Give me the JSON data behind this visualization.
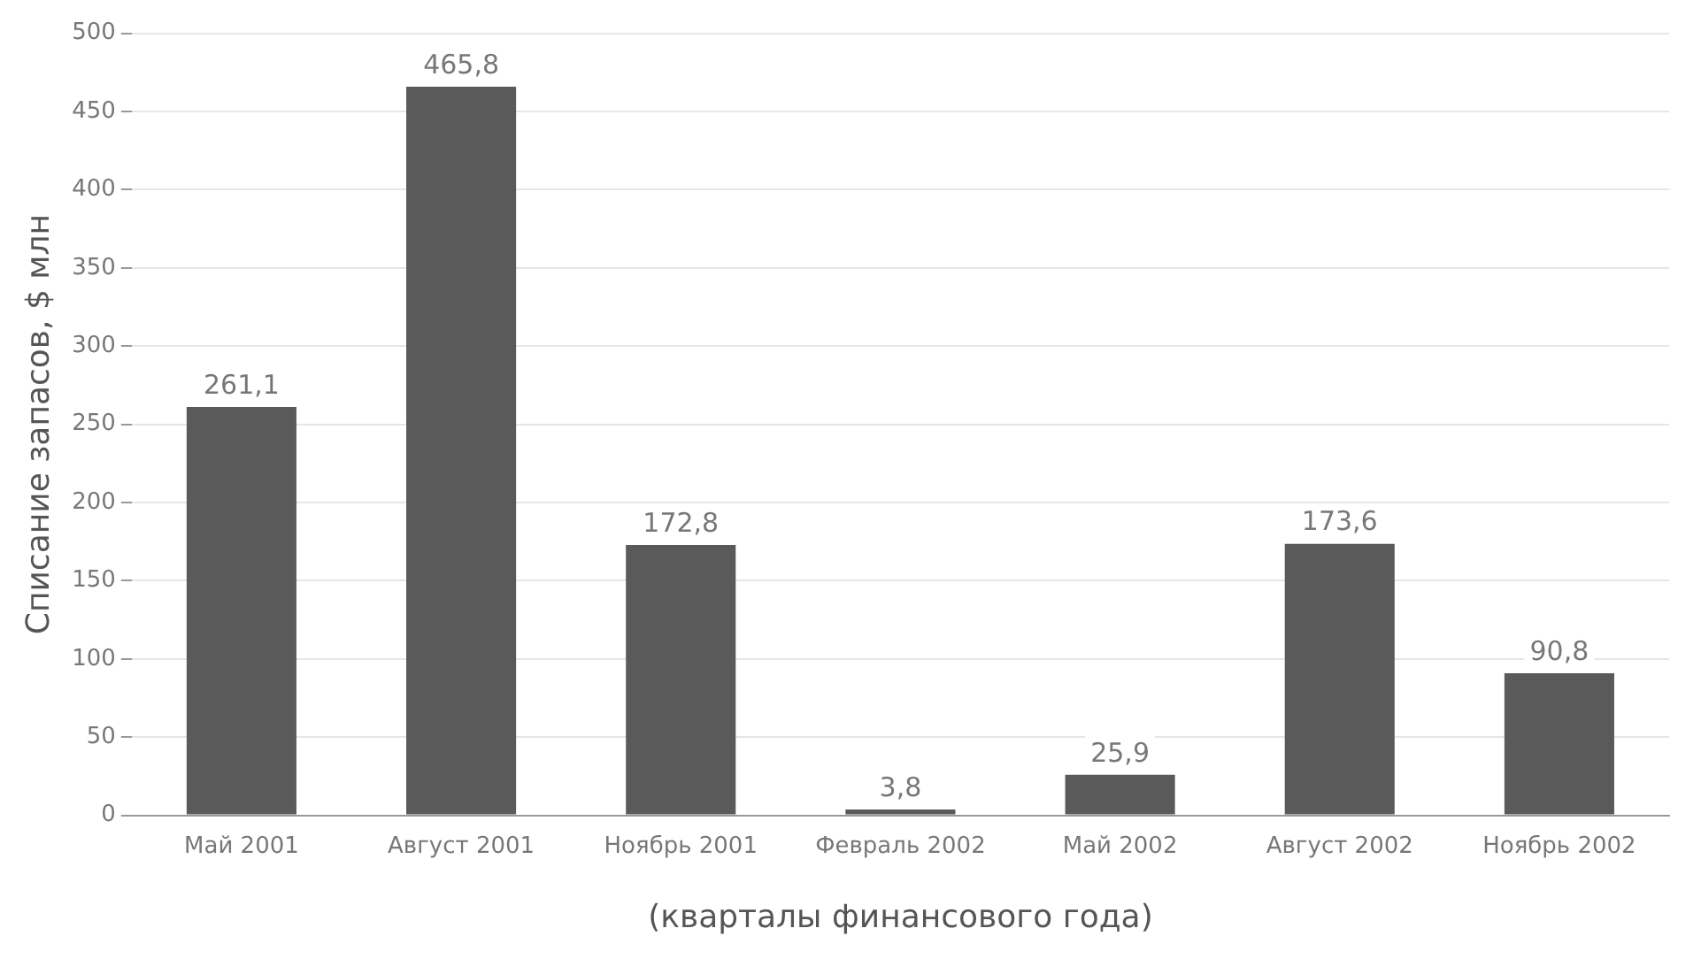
{
  "chart_data": {
    "type": "bar",
    "xlabel": "(кварталы финансового года)",
    "ylabel": "Списание запасов, $ млн",
    "categories": [
      "Май 2001",
      "Август 2001",
      "Ноябрь 2001",
      "Февраль 2002",
      "Май 2002",
      "Август 2002",
      "Ноябрь 2002"
    ],
    "values": [
      261.1,
      465.8,
      172.8,
      3.8,
      25.9,
      173.6,
      90.8
    ],
    "value_labels": [
      "261,1",
      "465,8",
      "172,8",
      "3,8",
      "25,9",
      "173,6",
      "90,8"
    ],
    "color": "#5a5a5a",
    "ylim": [
      0,
      500
    ],
    "yticks": [
      0,
      50,
      100,
      150,
      200,
      250,
      300,
      350,
      400,
      450,
      500
    ],
    "grid": "y",
    "legend": false
  }
}
